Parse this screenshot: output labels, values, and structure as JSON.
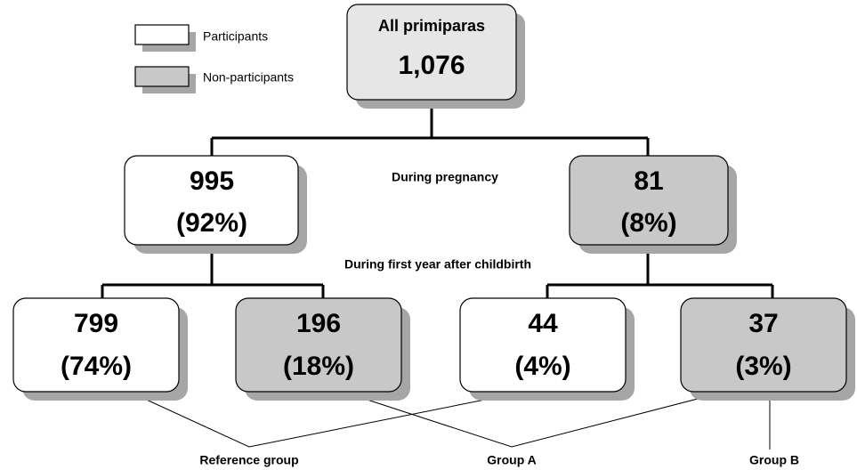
{
  "legend": [
    {
      "label": "Participants"
    },
    {
      "label": "Non-participants"
    }
  ],
  "root": {
    "label": "All primiparas",
    "count": "1,076"
  },
  "stages": [
    "During pregnancy",
    "During first year after childbirth"
  ],
  "level1": [
    {
      "count": "995",
      "percent": "(92%)"
    },
    {
      "count": "81",
      "percent": "(8%)"
    }
  ],
  "level2": [
    {
      "count": "799",
      "percent": "(74%)"
    },
    {
      "count": "196",
      "percent": "(18%)"
    },
    {
      "count": "44",
      "percent": "(4%)"
    },
    {
      "count": "37",
      "percent": "(3%)"
    }
  ],
  "groups": [
    "Reference group",
    "Group A",
    "Group B"
  ]
}
